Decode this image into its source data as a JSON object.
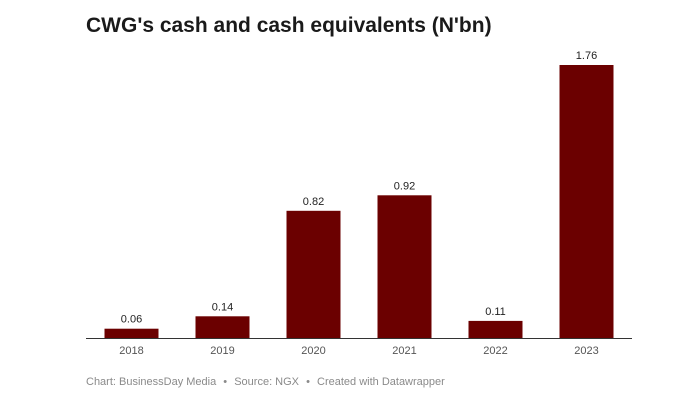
{
  "chart_data": {
    "type": "bar",
    "title": "CWG's cash and cash equivalents (N'bn)",
    "categories": [
      "2018",
      "2019",
      "2020",
      "2021",
      "2022",
      "2023"
    ],
    "values": [
      0.06,
      0.14,
      0.82,
      0.92,
      0.11,
      1.76
    ],
    "value_labels": [
      "0.06",
      "0.14",
      "0.82",
      "0.92",
      "0.11",
      "1.76"
    ],
    "ylim": [
      0,
      1.76
    ],
    "xlabel": "",
    "ylabel": "",
    "grid": false,
    "bar_color": "#6b0000"
  },
  "footer": {
    "chart_credit": "Chart: BusinessDay Media",
    "source": "Source: NGX",
    "created_with": "Created with Datawrapper",
    "separator": "•"
  }
}
